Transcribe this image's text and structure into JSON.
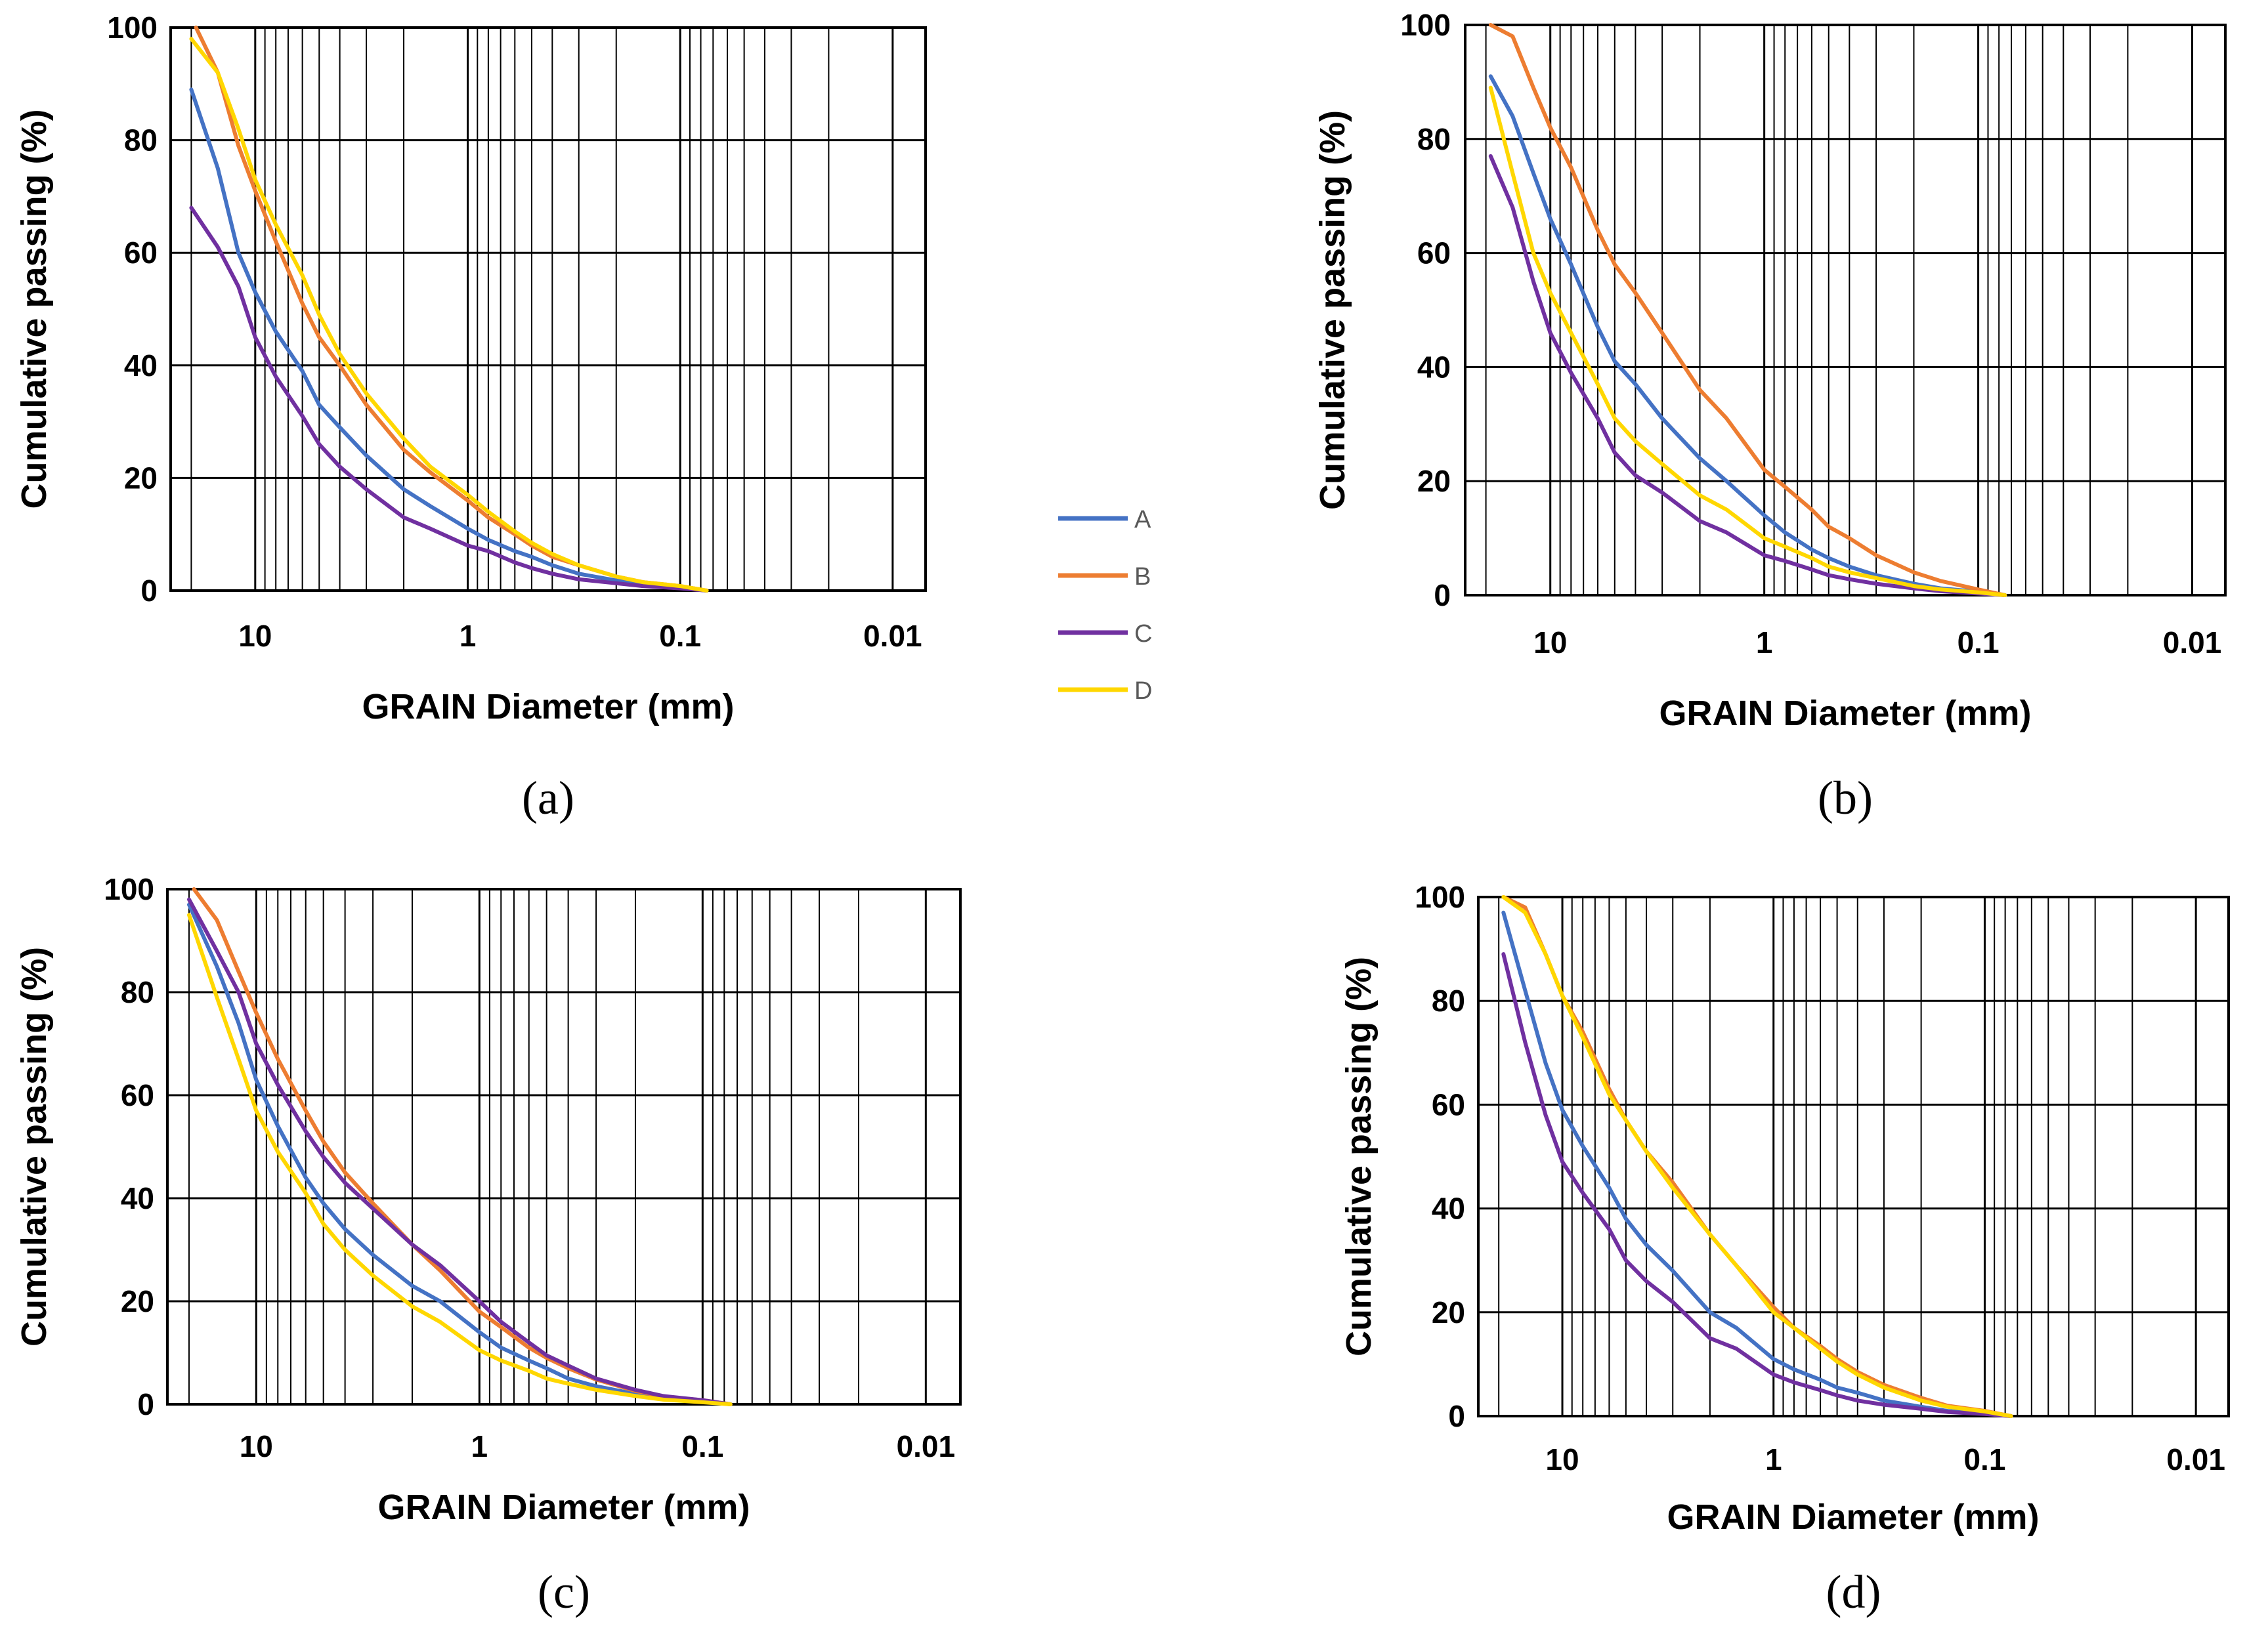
{
  "legend": {
    "series": [
      {
        "name": "A",
        "color": "#4472C4"
      },
      {
        "name": "B",
        "color": "#ED7D31"
      },
      {
        "name": "C",
        "color": "#7030A0"
      },
      {
        "name": "D",
        "color": "#FFD700"
      }
    ]
  },
  "chart_data": [
    {
      "panel": "(a)",
      "type": "line",
      "xlabel": "GRAIN Diameter (mm)",
      "ylabel": "Cumulative passing (%)",
      "xscale": "log",
      "xaxis": "reversed",
      "xlim": [
        25,
        0.007
      ],
      "ylim": [
        0,
        100
      ],
      "xticks": [
        "10",
        "1",
        "0.1",
        "0.01"
      ],
      "yticks": [
        "0",
        "20",
        "40",
        "60",
        "80",
        "100"
      ],
      "grid": true,
      "series": [
        {
          "name": "A",
          "x": [
            20,
            15,
            12,
            10,
            8,
            6,
            5,
            4,
            3,
            2,
            1.5,
            1,
            0.8,
            0.6,
            0.5,
            0.4,
            0.3,
            0.2,
            0.15,
            0.1,
            0.075
          ],
          "y": [
            89,
            75,
            60,
            53,
            46,
            39,
            33,
            29,
            24,
            18,
            15,
            11,
            9,
            7,
            6,
            4.5,
            3,
            1.8,
            1,
            0.5,
            0
          ]
        },
        {
          "name": "B",
          "x": [
            19,
            15,
            12,
            10,
            8,
            6,
            5,
            4,
            3,
            2,
            1.5,
            1,
            0.8,
            0.6,
            0.5,
            0.4,
            0.3,
            0.2,
            0.15,
            0.1,
            0.075
          ],
          "y": [
            100,
            92,
            79,
            71,
            62,
            51,
            45,
            40,
            33,
            25,
            21,
            16,
            13,
            10,
            8,
            6,
            4.5,
            2.5,
            1.5,
            0.8,
            0
          ]
        },
        {
          "name": "C",
          "x": [
            20,
            15,
            12,
            10,
            8,
            6,
            5,
            4,
            3,
            2,
            1.5,
            1,
            0.8,
            0.6,
            0.5,
            0.4,
            0.3,
            0.2,
            0.15,
            0.1,
            0.075
          ],
          "y": [
            68,
            61,
            54,
            45,
            38,
            31,
            26,
            22,
            18,
            13,
            11,
            8,
            7,
            5,
            4,
            3,
            2,
            1.3,
            0.8,
            0.4,
            0
          ]
        },
        {
          "name": "D",
          "x": [
            20,
            15,
            12,
            10,
            8,
            6,
            5,
            4,
            3,
            2,
            1.5,
            1,
            0.8,
            0.6,
            0.5,
            0.4,
            0.3,
            0.2,
            0.15,
            0.1,
            0.075
          ],
          "y": [
            98,
            92,
            82,
            73,
            65,
            56,
            49,
            42,
            35,
            27,
            22,
            17,
            14,
            10.5,
            8.5,
            6.5,
            4.5,
            2.5,
            1.5,
            0.8,
            0
          ]
        }
      ]
    },
    {
      "panel": "(b)",
      "type": "line",
      "xlabel": "GRAIN Diameter (mm)",
      "ylabel": "Cumulative passing (%)",
      "xscale": "log",
      "xaxis": "reversed",
      "xlim": [
        25,
        0.007
      ],
      "ylim": [
        0,
        100
      ],
      "xticks": [
        "10",
        "1",
        "0.1",
        "0.01"
      ],
      "yticks": [
        "0",
        "20",
        "40",
        "60",
        "80",
        "100"
      ],
      "grid": true,
      "series": [
        {
          "name": "A",
          "x": [
            19,
            15,
            12,
            10,
            8,
            6,
            5,
            4,
            3,
            2,
            1.5,
            1,
            0.8,
            0.6,
            0.5,
            0.4,
            0.3,
            0.2,
            0.15,
            0.1,
            0.075
          ],
          "y": [
            91,
            84,
            74,
            66,
            58,
            47,
            41,
            37,
            31,
            24,
            20,
            14,
            11,
            8,
            6.5,
            5,
            3.5,
            2,
            1.2,
            0.6,
            0
          ]
        },
        {
          "name": "B",
          "x": [
            19,
            15,
            12,
            10,
            8,
            6,
            5,
            4,
            3,
            2,
            1.5,
            1,
            0.8,
            0.6,
            0.5,
            0.4,
            0.3,
            0.2,
            0.15,
            0.1,
            0.075
          ],
          "y": [
            100,
            98,
            89,
            82,
            75,
            64,
            58,
            53,
            46,
            36,
            31,
            22,
            19,
            15,
            12,
            10,
            7,
            4,
            2.5,
            1,
            0
          ]
        },
        {
          "name": "C",
          "x": [
            19,
            15,
            12,
            10,
            8,
            6,
            5,
            4,
            3,
            2,
            1.5,
            1,
            0.8,
            0.6,
            0.5,
            0.4,
            0.3,
            0.2,
            0.15,
            0.1,
            0.075
          ],
          "y": [
            77,
            68,
            55,
            46,
            39,
            31,
            25,
            21,
            18,
            13,
            11,
            7,
            6,
            4.5,
            3.5,
            2.8,
            2,
            1.2,
            0.7,
            0.3,
            0
          ]
        },
        {
          "name": "D",
          "x": [
            19,
            15,
            12,
            10,
            8,
            6,
            5,
            4,
            3,
            2,
            1.5,
            1,
            0.8,
            0.6,
            0.5,
            0.4,
            0.3,
            0.2,
            0.15,
            0.1,
            0.075
          ],
          "y": [
            89,
            74,
            60,
            53,
            46,
            37,
            31,
            27,
            23,
            17.5,
            15,
            10,
            8.5,
            6.5,
            5,
            4,
            3,
            1.6,
            1,
            0.5,
            0
          ]
        }
      ]
    },
    {
      "panel": "(c)",
      "type": "line",
      "xlabel": "GRAIN Diameter (mm)",
      "ylabel": "Cumulative passing (%)",
      "xscale": "log",
      "xaxis": "reversed",
      "xlim": [
        25,
        0.007
      ],
      "ylim": [
        0,
        100
      ],
      "xticks": [
        "10",
        "1",
        "0.1",
        "0.01"
      ],
      "yticks": [
        "0",
        "20",
        "40",
        "60",
        "80",
        "100"
      ],
      "grid": true,
      "series": [
        {
          "name": "A",
          "x": [
            20,
            15,
            12,
            10,
            8,
            6,
            5,
            4,
            3,
            2,
            1.5,
            1,
            0.8,
            0.6,
            0.5,
            0.4,
            0.3,
            0.2,
            0.15,
            0.1,
            0.075
          ],
          "y": [
            97,
            85,
            74,
            63,
            54,
            44,
            39,
            34,
            29,
            23,
            20,
            14,
            11,
            8.5,
            7,
            5,
            3.5,
            2,
            1.2,
            0.6,
            0
          ]
        },
        {
          "name": "B",
          "x": [
            19,
            15,
            12,
            10,
            8,
            6,
            5,
            4,
            3,
            2,
            1.5,
            1,
            0.8,
            0.6,
            0.5,
            0.4,
            0.3,
            0.2,
            0.15,
            0.1,
            0.075
          ],
          "y": [
            100,
            94,
            84,
            76,
            67,
            57,
            51,
            45,
            39,
            31,
            26,
            18,
            15,
            11,
            9,
            7,
            4.8,
            2.6,
            1.5,
            0.8,
            0
          ]
        },
        {
          "name": "C",
          "x": [
            20,
            15,
            12,
            10,
            8,
            6,
            5,
            4,
            3,
            2,
            1.5,
            1,
            0.8,
            0.6,
            0.5,
            0.4,
            0.3,
            0.2,
            0.15,
            0.1,
            0.075
          ],
          "y": [
            98,
            88,
            80,
            70,
            62,
            53,
            48,
            43,
            38,
            31,
            27,
            20,
            16,
            12,
            9.5,
            7.5,
            5,
            2.8,
            1.6,
            0.8,
            0
          ]
        },
        {
          "name": "D",
          "x": [
            20,
            15,
            12,
            10,
            8,
            6,
            5,
            4,
            3,
            2,
            1.5,
            1,
            0.8,
            0.6,
            0.5,
            0.4,
            0.3,
            0.2,
            0.15,
            0.1,
            0.075
          ],
          "y": [
            95,
            79,
            67,
            57,
            49,
            41,
            35,
            30,
            25,
            19,
            16,
            10.5,
            8.5,
            6.5,
            5,
            4,
            2.8,
            1.6,
            0.9,
            0.4,
            0
          ]
        }
      ]
    },
    {
      "panel": "(d)",
      "type": "line",
      "xlabel": "GRAIN Diameter (mm)",
      "ylabel": "Cumulative passing (%)",
      "xscale": "log",
      "xaxis": "reversed",
      "xlim": [
        25,
        0.007
      ],
      "ylim": [
        0,
        100
      ],
      "xticks": [
        "10",
        "1",
        "0.1",
        "0.01"
      ],
      "yticks": [
        "0",
        "20",
        "40",
        "60",
        "80",
        "100"
      ],
      "grid": true,
      "series": [
        {
          "name": "A",
          "x": [
            19,
            15,
            12,
            10,
            8,
            6,
            5,
            4,
            3,
            2,
            1.5,
            1,
            0.8,
            0.6,
            0.5,
            0.4,
            0.3,
            0.2,
            0.15,
            0.1,
            0.075
          ],
          "y": [
            97,
            82,
            68,
            59,
            52,
            44,
            38,
            33,
            28,
            20,
            17,
            11,
            9,
            7,
            5.5,
            4.5,
            3,
            1.8,
            1,
            0.5,
            0
          ]
        },
        {
          "name": "B",
          "x": [
            19,
            15,
            12,
            10,
            8,
            6,
            5,
            4,
            3,
            2,
            1.5,
            1,
            0.8,
            0.6,
            0.5,
            0.4,
            0.3,
            0.2,
            0.15,
            0.1,
            0.075
          ],
          "y": [
            100,
            98,
            89,
            81,
            74,
            63,
            57,
            51,
            45,
            35,
            29,
            21,
            17,
            13.5,
            11,
            8.5,
            6,
            3.5,
            2,
            1,
            0
          ]
        },
        {
          "name": "C",
          "x": [
            19,
            15,
            12,
            10,
            8,
            6,
            5,
            4,
            3,
            2,
            1.5,
            1,
            0.8,
            0.6,
            0.5,
            0.4,
            0.3,
            0.2,
            0.15,
            0.1,
            0.075
          ],
          "y": [
            89,
            72,
            58,
            49,
            43,
            36,
            30,
            26,
            22,
            15,
            13,
            8,
            6.5,
            5,
            4,
            3,
            2.2,
            1.4,
            0.8,
            0.4,
            0
          ]
        },
        {
          "name": "D",
          "x": [
            19,
            15,
            12,
            10,
            8,
            6,
            5,
            4,
            3,
            2,
            1.5,
            1,
            0.8,
            0.6,
            0.5,
            0.4,
            0.3,
            0.2,
            0.15,
            0.1,
            0.075
          ],
          "y": [
            100,
            97,
            89,
            81,
            73,
            62,
            57,
            51,
            44,
            35,
            29,
            20,
            17,
            13,
            10.5,
            8,
            5.5,
            3,
            1.8,
            0.9,
            0
          ]
        }
      ]
    }
  ]
}
